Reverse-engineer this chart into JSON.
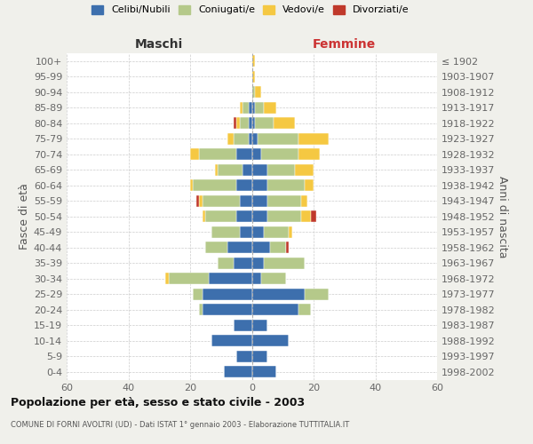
{
  "age_groups": [
    "0-4",
    "5-9",
    "10-14",
    "15-19",
    "20-24",
    "25-29",
    "30-34",
    "35-39",
    "40-44",
    "45-49",
    "50-54",
    "55-59",
    "60-64",
    "65-69",
    "70-74",
    "75-79",
    "80-84",
    "85-89",
    "90-94",
    "95-99",
    "100+"
  ],
  "birth_years": [
    "1998-2002",
    "1993-1997",
    "1988-1992",
    "1983-1987",
    "1978-1982",
    "1973-1977",
    "1968-1972",
    "1963-1967",
    "1958-1962",
    "1953-1957",
    "1948-1952",
    "1943-1947",
    "1938-1942",
    "1933-1937",
    "1928-1932",
    "1923-1927",
    "1918-1922",
    "1913-1917",
    "1908-1912",
    "1903-1907",
    "≤ 1902"
  ],
  "maschi_celibe": [
    9,
    5,
    13,
    6,
    16,
    16,
    14,
    6,
    8,
    4,
    5,
    4,
    5,
    3,
    5,
    1,
    1,
    1,
    0,
    0,
    0
  ],
  "maschi_coniugato": [
    0,
    0,
    0,
    0,
    1,
    3,
    13,
    5,
    7,
    9,
    10,
    12,
    14,
    8,
    12,
    5,
    3,
    2,
    0,
    0,
    0
  ],
  "maschi_vedovo": [
    0,
    0,
    0,
    0,
    0,
    0,
    1,
    0,
    0,
    0,
    1,
    1,
    1,
    1,
    3,
    2,
    1,
    1,
    0,
    0,
    0
  ],
  "maschi_divorziato": [
    0,
    0,
    0,
    0,
    0,
    0,
    0,
    0,
    0,
    0,
    0,
    1,
    0,
    0,
    0,
    0,
    1,
    0,
    0,
    0,
    0
  ],
  "femmine_nubile": [
    8,
    5,
    12,
    5,
    15,
    17,
    3,
    4,
    6,
    4,
    5,
    5,
    5,
    5,
    3,
    2,
    1,
    1,
    0,
    0,
    0
  ],
  "femmine_coniugata": [
    0,
    0,
    0,
    0,
    4,
    8,
    8,
    13,
    5,
    8,
    11,
    11,
    12,
    9,
    12,
    13,
    6,
    3,
    1,
    0,
    0
  ],
  "femmine_vedova": [
    0,
    0,
    0,
    0,
    0,
    0,
    0,
    0,
    0,
    1,
    3,
    2,
    3,
    6,
    7,
    10,
    7,
    4,
    2,
    1,
    1
  ],
  "femmine_divorziata": [
    0,
    0,
    0,
    0,
    0,
    0,
    0,
    0,
    1,
    0,
    2,
    0,
    0,
    0,
    0,
    0,
    0,
    0,
    0,
    0,
    0
  ],
  "color_celibe": "#3d6fad",
  "color_coniugato": "#b5c98a",
  "color_vedovo": "#f5c842",
  "color_divorziato": "#c0392b",
  "title": "Popolazione per età, sesso e stato civile - 2003",
  "subtitle": "COMUNE DI FORNI AVOLTRI (UD) - Dati ISTAT 1° gennaio 2003 - Elaborazione TUTTITALIA.IT",
  "label_maschi": "Maschi",
  "label_femmine": "Femmine",
  "label_fasce": "Fasce di età",
  "label_anni": "Anni di nascita",
  "legend_labels": [
    "Celibi/Nubili",
    "Coniugati/e",
    "Vedovi/e",
    "Divorziati/e"
  ],
  "xlim": 60,
  "bg_color": "#f0f0eb",
  "plot_bg": "#ffffff"
}
